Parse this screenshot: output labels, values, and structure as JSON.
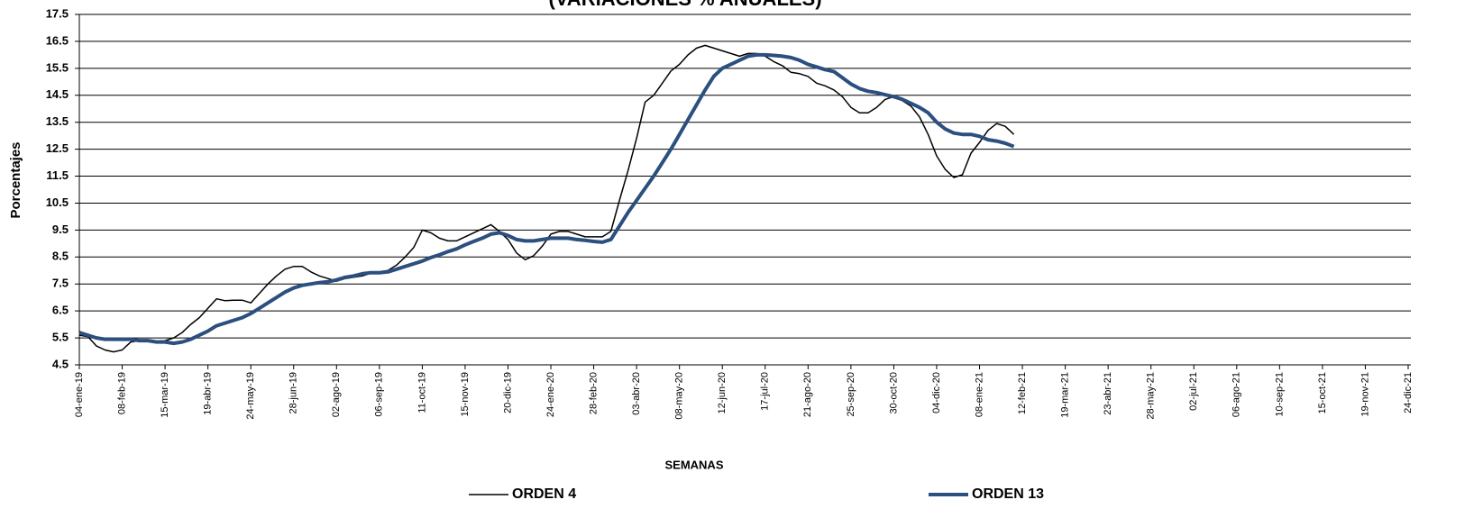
{
  "chart_data": {
    "type": "line",
    "title": "(VARIACIONES % ANUALES)",
    "y_label": "Porcentajes",
    "x_label": "SEMANAS",
    "ylim": [
      4.5,
      17.5
    ],
    "yticks": [
      4.5,
      5.5,
      6.5,
      7.5,
      8.5,
      9.5,
      10.5,
      11.5,
      12.5,
      13.5,
      14.5,
      15.5,
      16.5,
      17.5
    ],
    "grid": true,
    "legend": "bottom",
    "categories": [
      "04-ene-19",
      null,
      null,
      null,
      null,
      "08-feb-19",
      null,
      null,
      null,
      null,
      "15-mar-19",
      null,
      null,
      null,
      null,
      "19-abr-19",
      null,
      null,
      null,
      null,
      "24-may-19",
      null,
      null,
      null,
      null,
      "28-jun-19",
      null,
      null,
      null,
      null,
      "02-ago-19",
      null,
      null,
      null,
      null,
      "06-sep-19",
      null,
      null,
      null,
      null,
      "11-oct-19",
      null,
      null,
      null,
      null,
      "15-nov-19",
      null,
      null,
      null,
      null,
      "20-dic-19",
      null,
      null,
      null,
      null,
      "24-ene-20",
      null,
      null,
      null,
      null,
      "28-feb-20",
      null,
      null,
      null,
      null,
      "03-abr-20",
      null,
      null,
      null,
      null,
      "08-may-20",
      null,
      null,
      null,
      null,
      "12-jun-20",
      null,
      null,
      null,
      null,
      "17-jul-20",
      null,
      null,
      null,
      null,
      "21-ago-20",
      null,
      null,
      null,
      null,
      "25-sep-20",
      null,
      null,
      null,
      null,
      "30-oct-20",
      null,
      null,
      null,
      null,
      "04-dic-20",
      null,
      null,
      null,
      null,
      "08-ene-21",
      null,
      null,
      null,
      null,
      "12-feb-21",
      null,
      null,
      null,
      null,
      "19-mar-21",
      null,
      null,
      null,
      null,
      "23-abr-21",
      null,
      null,
      null,
      null,
      "28-may-21",
      null,
      null,
      null,
      null,
      "02-jul-21",
      null,
      null,
      null,
      null,
      "06-ago-21",
      null,
      null,
      null,
      null,
      "10-sep-21",
      null,
      null,
      null,
      null,
      "15-oct-21",
      null,
      null,
      null,
      null,
      "19-nov-21",
      null,
      null,
      null,
      null,
      "24-dic-21"
    ],
    "series": [
      {
        "name": "ORDEN 4",
        "color": "#000000",
        "width": 1.5,
        "values": [
          5.6,
          5.55,
          5.2,
          5.05,
          4.98,
          5.05,
          5.35,
          5.4,
          5.4,
          5.38,
          5.4,
          5.5,
          5.7,
          6.0,
          6.25,
          6.6,
          6.95,
          6.88,
          6.9,
          6.9,
          6.8,
          7.15,
          7.5,
          7.8,
          8.05,
          8.15,
          8.15,
          7.95,
          7.8,
          7.7,
          7.6,
          7.7,
          7.75,
          7.8,
          7.9,
          7.95,
          8.0,
          8.2,
          8.5,
          8.85,
          9.5,
          9.4,
          9.2,
          9.1,
          9.1,
          9.25,
          9.4,
          9.55,
          9.7,
          9.45,
          9.15,
          8.65,
          8.4,
          8.55,
          8.9,
          9.35,
          9.45,
          9.45,
          9.35,
          9.25,
          9.25,
          9.25,
          9.45,
          10.6,
          11.7,
          12.9,
          14.25,
          14.5,
          14.95,
          15.4,
          15.65,
          16.0,
          16.25,
          16.35,
          16.25,
          16.15,
          16.05,
          15.95,
          16.05,
          16.05,
          15.95,
          15.75,
          15.6,
          15.35,
          15.3,
          15.2,
          14.95,
          14.85,
          14.7,
          14.45,
          14.05,
          13.85,
          13.85,
          14.05,
          14.35,
          14.45,
          14.3,
          14.1,
          13.7,
          13.05,
          12.25,
          11.75,
          11.45,
          11.55,
          12.35,
          12.75,
          13.2,
          13.45,
          13.35,
          13.05,
          null,
          null,
          null,
          null,
          null,
          null,
          null,
          null,
          null,
          null,
          null,
          null,
          null,
          null,
          null,
          null,
          null,
          null,
          null,
          null,
          null,
          null,
          null,
          null,
          null,
          null,
          null,
          null,
          null,
          null,
          null,
          null,
          null,
          null,
          null,
          null,
          null,
          null,
          null,
          null,
          null,
          null,
          null,
          null,
          null,
          null
        ]
      },
      {
        "name": "ORDEN 13",
        "color": "#2b4f7e",
        "width": 4,
        "values": [
          5.7,
          5.6,
          5.5,
          5.45,
          5.45,
          5.45,
          5.45,
          5.4,
          5.4,
          5.35,
          5.35,
          5.3,
          5.35,
          5.45,
          5.6,
          5.75,
          5.95,
          6.05,
          6.15,
          6.25,
          6.4,
          6.6,
          6.8,
          7.0,
          7.2,
          7.35,
          7.45,
          7.5,
          7.55,
          7.58,
          7.65,
          7.75,
          7.8,
          7.88,
          7.92,
          7.92,
          7.95,
          8.05,
          8.15,
          8.25,
          8.35,
          8.48,
          8.58,
          8.7,
          8.8,
          8.95,
          9.08,
          9.2,
          9.35,
          9.4,
          9.3,
          9.15,
          9.1,
          9.1,
          9.15,
          9.2,
          9.2,
          9.2,
          9.15,
          9.12,
          9.08,
          9.05,
          9.15,
          9.65,
          10.15,
          10.6,
          11.05,
          11.5,
          12.0,
          12.5,
          13.05,
          13.6,
          14.15,
          14.7,
          15.2,
          15.5,
          15.65,
          15.8,
          15.95,
          16.0,
          16.0,
          15.98,
          15.95,
          15.9,
          15.8,
          15.65,
          15.55,
          15.45,
          15.38,
          15.15,
          14.92,
          14.75,
          14.65,
          14.6,
          14.52,
          14.45,
          14.35,
          14.2,
          14.05,
          13.85,
          13.5,
          13.25,
          13.1,
          13.05,
          13.05,
          12.98,
          12.85,
          12.8,
          12.72,
          12.6,
          null,
          null,
          null,
          null,
          null,
          null,
          null,
          null,
          null,
          null,
          null,
          null,
          null,
          null,
          null,
          null,
          null,
          null,
          null,
          null,
          null,
          null,
          null,
          null,
          null,
          null,
          null,
          null,
          null,
          null,
          null,
          null,
          null,
          null,
          null,
          null,
          null,
          null,
          null,
          null,
          null,
          null,
          null,
          null,
          null,
          null
        ]
      }
    ]
  }
}
